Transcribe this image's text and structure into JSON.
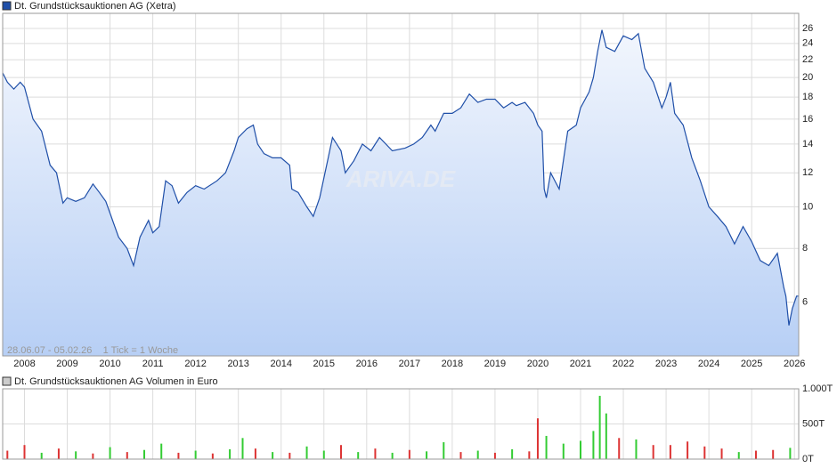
{
  "chart_data": [
    {
      "type": "area",
      "title": "Dt. Grundstücksauktionen AG (Xetra)",
      "subtitle": "28.06.07 - 05.02.26    1 Tick = 1 Woche",
      "watermark": "ARIVA.DE",
      "color": "#1f4fa8",
      "log_scale": true,
      "grid": true,
      "xlim": [
        2007.49,
        2026.1
      ],
      "xticks": [
        2008,
        2009,
        2010,
        2011,
        2012,
        2013,
        2014,
        2015,
        2016,
        2017,
        2018,
        2019,
        2020,
        2021,
        2022,
        2023,
        2024,
        2025,
        2026
      ],
      "ylim": [
        4.5,
        28.2
      ],
      "yticks": [
        6,
        8,
        10,
        12,
        14,
        16,
        18,
        20,
        22,
        24,
        26
      ],
      "x": [
        2007.49,
        2007.6,
        2007.75,
        2007.9,
        2008.0,
        2008.2,
        2008.4,
        2008.6,
        2008.75,
        2008.9,
        2009.0,
        2009.2,
        2009.4,
        2009.6,
        2009.75,
        2009.9,
        2010.2,
        2010.4,
        2010.55,
        2010.7,
        2010.9,
        2011.0,
        2011.15,
        2011.3,
        2011.45,
        2011.6,
        2011.8,
        2012.0,
        2012.2,
        2012.5,
        2012.7,
        2012.9,
        2013.0,
        2013.2,
        2013.35,
        2013.45,
        2013.6,
        2013.8,
        2014.0,
        2014.2,
        2014.25,
        2014.4,
        2014.6,
        2014.75,
        2014.9,
        2015.1,
        2015.2,
        2015.4,
        2015.5,
        2015.7,
        2015.9,
        2016.1,
        2016.3,
        2016.6,
        2016.9,
        2017.1,
        2017.3,
        2017.5,
        2017.6,
        2017.8,
        2018.0,
        2018.2,
        2018.4,
        2018.6,
        2018.8,
        2019.0,
        2019.2,
        2019.4,
        2019.5,
        2019.7,
        2019.9,
        2020.0,
        2020.1,
        2020.15,
        2020.2,
        2020.3,
        2020.5,
        2020.7,
        2020.9,
        2021.0,
        2021.2,
        2021.3,
        2021.4,
        2021.5,
        2021.6,
        2021.8,
        2022.0,
        2022.2,
        2022.35,
        2022.5,
        2022.7,
        2022.9,
        2023.0,
        2023.1,
        2023.2,
        2023.4,
        2023.6,
        2023.8,
        2024.0,
        2024.2,
        2024.4,
        2024.6,
        2024.8,
        2025.0,
        2025.2,
        2025.4,
        2025.6,
        2025.75,
        2025.8,
        2025.87,
        2025.95,
        2026.05,
        2026.1
      ],
      "values": [
        20.5,
        19.5,
        18.8,
        19.5,
        19.0,
        16,
        15,
        12.5,
        12,
        10.2,
        10.5,
        10.3,
        10.5,
        11.3,
        10.8,
        10.3,
        8.5,
        8,
        7.3,
        8.5,
        9.3,
        8.7,
        9,
        11.5,
        11.2,
        10.2,
        10.8,
        11.2,
        11,
        11.5,
        12,
        13.5,
        14.5,
        15.2,
        15.5,
        14,
        13.3,
        13,
        13,
        12.5,
        11,
        10.8,
        10,
        9.5,
        10.5,
        13,
        14.5,
        13.5,
        12,
        12.8,
        14,
        13.5,
        14.5,
        13.5,
        13.7,
        14,
        14.5,
        15.5,
        15,
        16.5,
        16.5,
        17,
        18.3,
        17.5,
        17.8,
        17.8,
        17,
        17.5,
        17.2,
        17.5,
        16.5,
        15.5,
        15,
        11,
        10.5,
        12,
        11,
        15,
        15.5,
        17,
        18.5,
        20,
        23,
        25.8,
        23.5,
        23,
        25,
        24.5,
        25.3,
        21,
        19.5,
        17,
        18,
        19.5,
        16.5,
        15.5,
        13,
        11.5,
        10,
        9.5,
        9,
        8.2,
        9,
        8.3,
        7.5,
        7.3,
        7.8,
        6.5,
        6.2,
        5.3,
        5.8,
        6.2,
        6.2
      ]
    },
    {
      "type": "bar",
      "title": "Dt. Grundstücksauktionen AG Volumen in Euro",
      "grid": true,
      "xlim": [
        2007.49,
        2026.1
      ],
      "xticks": [
        2008,
        2009,
        2010,
        2011,
        2012,
        2013,
        2014,
        2015,
        2016,
        2017,
        2018,
        2019,
        2020,
        2021,
        2022,
        2023,
        2024,
        2025,
        2026
      ],
      "ylim": [
        0,
        1000000
      ],
      "yticks": [
        {
          "value": 0,
          "label": "0T"
        },
        {
          "value": 500000,
          "label": "500T"
        },
        {
          "value": 1000000,
          "label": "1.000T"
        }
      ],
      "x": [
        2007.6,
        2008.0,
        2008.4,
        2008.8,
        2009.2,
        2009.6,
        2010.0,
        2010.4,
        2010.8,
        2011.2,
        2011.6,
        2012.0,
        2012.4,
        2012.8,
        2013.1,
        2013.4,
        2013.8,
        2014.2,
        2014.6,
        2015.0,
        2015.4,
        2015.8,
        2016.2,
        2016.6,
        2017.0,
        2017.4,
        2017.8,
        2018.2,
        2018.6,
        2019.0,
        2019.4,
        2019.8,
        2020.0,
        2020.2,
        2020.6,
        2021.0,
        2021.3,
        2021.45,
        2021.6,
        2021.9,
        2022.3,
        2022.7,
        2023.1,
        2023.5,
        2023.9,
        2024.3,
        2024.7,
        2025.1,
        2025.5,
        2025.9
      ],
      "values": [
        120000,
        200000,
        90000,
        150000,
        110000,
        80000,
        170000,
        100000,
        130000,
        220000,
        90000,
        120000,
        80000,
        140000,
        300000,
        150000,
        100000,
        90000,
        180000,
        120000,
        200000,
        100000,
        150000,
        90000,
        130000,
        110000,
        240000,
        100000,
        120000,
        90000,
        140000,
        110000,
        580000,
        330000,
        220000,
        260000,
        400000,
        900000,
        650000,
        300000,
        280000,
        200000,
        200000,
        250000,
        180000,
        150000,
        100000,
        120000,
        130000,
        160000
      ],
      "colors": [
        "#dd3333",
        "#dd3333",
        "#33cc33",
        "#dd3333",
        "#33cc33",
        "#dd3333",
        "#33cc33",
        "#dd3333",
        "#33cc33",
        "#33cc33",
        "#dd3333",
        "#33cc33",
        "#dd3333",
        "#33cc33",
        "#33cc33",
        "#dd3333",
        "#33cc33",
        "#dd3333",
        "#33cc33",
        "#33cc33",
        "#dd3333",
        "#33cc33",
        "#dd3333",
        "#33cc33",
        "#dd3333",
        "#33cc33",
        "#33cc33",
        "#dd3333",
        "#33cc33",
        "#dd3333",
        "#33cc33",
        "#dd3333",
        "#dd3333",
        "#33cc33",
        "#33cc33",
        "#33cc33",
        "#33cc33",
        "#33cc33",
        "#33cc33",
        "#dd3333",
        "#33cc33",
        "#dd3333",
        "#dd3333",
        "#dd3333",
        "#dd3333",
        "#dd3333",
        "#33cc33",
        "#dd3333",
        "#dd3333",
        "#33cc33"
      ]
    }
  ]
}
